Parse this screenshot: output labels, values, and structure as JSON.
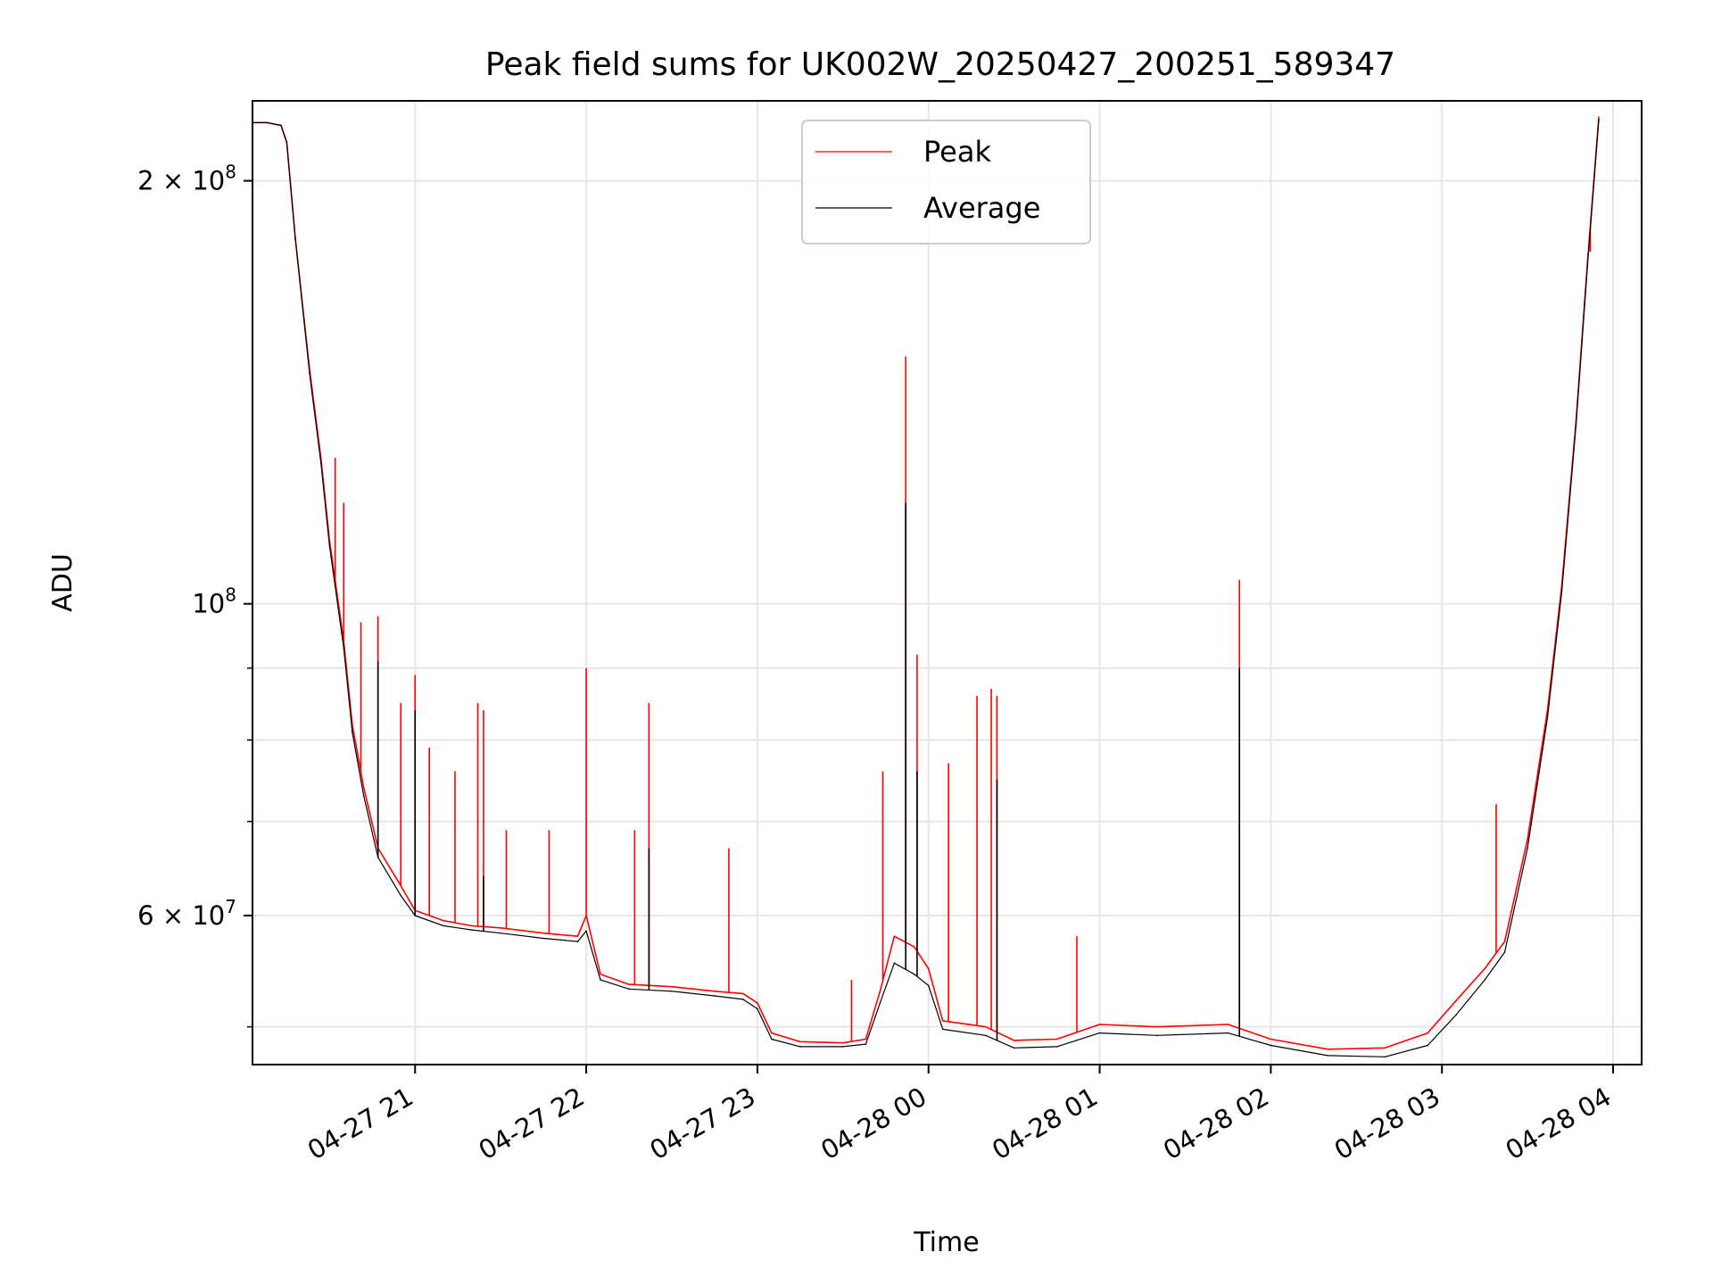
{
  "chart_data": {
    "type": "line",
    "title": "Peak field sums for UK002W_20250427_200251_589347",
    "xlabel": "Time",
    "ylabel": "ADU",
    "yscale": "log",
    "ylim": [
      47000000,
      228000000
    ],
    "xlim": [
      "2025-04-27 20:03",
      "2025-04-28 04:10"
    ],
    "grid": true,
    "legend_position": "top-center",
    "x_ticks": [
      {
        "label": "04-27 21",
        "value": "2025-04-27 21:00"
      },
      {
        "label": "04-27 22",
        "value": "2025-04-27 22:00"
      },
      {
        "label": "04-27 23",
        "value": "2025-04-27 23:00"
      },
      {
        "label": "04-28 00",
        "value": "2025-04-28 00:00"
      },
      {
        "label": "04-28 01",
        "value": "2025-04-28 01:00"
      },
      {
        "label": "04-28 02",
        "value": "2025-04-28 02:00"
      },
      {
        "label": "04-28 03",
        "value": "2025-04-28 03:00"
      },
      {
        "label": "04-28 04",
        "value": "2025-04-28 04:00"
      }
    ],
    "y_ticks_major": [
      {
        "value": 60000000,
        "base": "6",
        "exp": "7"
      },
      {
        "value": 100000000,
        "base": "",
        "exp": "8"
      },
      {
        "value": 200000000,
        "base": "2",
        "exp": "8"
      }
    ],
    "y_ticks_minor": [
      50000000,
      70000000,
      80000000,
      90000000
    ],
    "series": [
      {
        "name": "Peak",
        "color": "#ff0000",
        "x": [
          "2025-04-27 20:03",
          "2025-04-27 20:08",
          "2025-04-27 20:13",
          "2025-04-27 20:15",
          "2025-04-27 20:18",
          "2025-04-27 20:23",
          "2025-04-27 20:27",
          "2025-04-27 20:30",
          "2025-04-27 20:35",
          "2025-04-27 20:38",
          "2025-04-27 20:42",
          "2025-04-27 20:47",
          "2025-04-27 20:55",
          "2025-04-27 21:00",
          "2025-04-27 21:10",
          "2025-04-27 21:20",
          "2025-04-27 21:30",
          "2025-04-27 21:45",
          "2025-04-27 21:57",
          "2025-04-27 22:00",
          "2025-04-27 22:05",
          "2025-04-27 22:15",
          "2025-04-27 22:30",
          "2025-04-27 22:45",
          "2025-04-27 22:55",
          "2025-04-27 23:00",
          "2025-04-27 23:05",
          "2025-04-27 23:15",
          "2025-04-27 23:30",
          "2025-04-27 23:38",
          "2025-04-27 23:43",
          "2025-04-27 23:48",
          "2025-04-27 23:55",
          "2025-04-28 00:00",
          "2025-04-28 00:05",
          "2025-04-28 00:20",
          "2025-04-28 00:30",
          "2025-04-28 00:45",
          "2025-04-28 01:00",
          "2025-04-28 01:20",
          "2025-04-28 01:45",
          "2025-04-28 02:00",
          "2025-04-28 02:20",
          "2025-04-28 02:40",
          "2025-04-28 02:55",
          "2025-04-28 03:05",
          "2025-04-28 03:15",
          "2025-04-28 03:22",
          "2025-04-28 03:30",
          "2025-04-28 03:37",
          "2025-04-28 03:42",
          "2025-04-28 03:47",
          "2025-04-28 03:51",
          "2025-04-28 03:55"
        ],
        "values": [
          220000000,
          220000000,
          219000000,
          213000000,
          182000000,
          147000000,
          127000000,
          111000000,
          94000000,
          82000000,
          74000000,
          67000000,
          63000000,
          60500000,
          59500000,
          59000000,
          58800000,
          58300000,
          58000000,
          60000000,
          54500000,
          53600000,
          53400000,
          53000000,
          52800000,
          52000000,
          49500000,
          48800000,
          48700000,
          49000000,
          53000000,
          58000000,
          57000000,
          55000000,
          50500000,
          50000000,
          48900000,
          49000000,
          50200000,
          50000000,
          50200000,
          49000000,
          48200000,
          48300000,
          49500000,
          52200000,
          55000000,
          57500000,
          68000000,
          84000000,
          103000000,
          135000000,
          175000000,
          222000000
        ],
        "spikes": [
          {
            "x": "2025-04-27 20:32",
            "value": 127000000
          },
          {
            "x": "2025-04-27 20:35",
            "value": 118000000
          },
          {
            "x": "2025-04-27 20:41",
            "value": 97000000
          },
          {
            "x": "2025-04-27 20:47",
            "value": 98000000
          },
          {
            "x": "2025-04-27 20:55",
            "value": 85000000
          },
          {
            "x": "2025-04-27 21:00",
            "value": 89000000
          },
          {
            "x": "2025-04-27 21:05",
            "value": 79000000
          },
          {
            "x": "2025-04-27 21:14",
            "value": 76000000
          },
          {
            "x": "2025-04-27 21:22",
            "value": 85000000
          },
          {
            "x": "2025-04-27 21:24",
            "value": 84000000
          },
          {
            "x": "2025-04-27 21:32",
            "value": 69000000
          },
          {
            "x": "2025-04-27 21:47",
            "value": 69000000
          },
          {
            "x": "2025-04-27 22:00",
            "value": 90000000
          },
          {
            "x": "2025-04-27 22:17",
            "value": 69000000
          },
          {
            "x": "2025-04-27 22:22",
            "value": 85000000
          },
          {
            "x": "2025-04-27 22:50",
            "value": 67000000
          },
          {
            "x": "2025-04-27 23:33",
            "value": 54000000
          },
          {
            "x": "2025-04-27 23:44",
            "value": 76000000
          },
          {
            "x": "2025-04-27 23:52",
            "value": 150000000
          },
          {
            "x": "2025-04-27 23:56",
            "value": 92000000
          },
          {
            "x": "2025-04-28 00:07",
            "value": 77000000
          },
          {
            "x": "2025-04-28 00:17",
            "value": 86000000
          },
          {
            "x": "2025-04-28 00:22",
            "value": 87000000
          },
          {
            "x": "2025-04-28 00:24",
            "value": 86000000
          },
          {
            "x": "2025-04-28 00:52",
            "value": 58000000
          },
          {
            "x": "2025-04-28 01:49",
            "value": 104000000
          },
          {
            "x": "2025-04-28 03:19",
            "value": 72000000
          },
          {
            "x": "2025-04-28 03:52",
            "value": 178000000
          }
        ]
      },
      {
        "name": "Average",
        "color": "#000000",
        "x": [
          "2025-04-27 20:03",
          "2025-04-27 20:08",
          "2025-04-27 20:13",
          "2025-04-27 20:15",
          "2025-04-27 20:18",
          "2025-04-27 20:23",
          "2025-04-27 20:27",
          "2025-04-27 20:30",
          "2025-04-27 20:35",
          "2025-04-27 20:38",
          "2025-04-27 20:42",
          "2025-04-27 20:47",
          "2025-04-27 20:55",
          "2025-04-27 21:00",
          "2025-04-27 21:10",
          "2025-04-27 21:20",
          "2025-04-27 21:30",
          "2025-04-27 21:45",
          "2025-04-27 21:57",
          "2025-04-27 22:00",
          "2025-04-27 22:05",
          "2025-04-27 22:15",
          "2025-04-27 22:30",
          "2025-04-27 22:45",
          "2025-04-27 22:55",
          "2025-04-27 23:00",
          "2025-04-27 23:05",
          "2025-04-27 23:15",
          "2025-04-27 23:30",
          "2025-04-27 23:38",
          "2025-04-27 23:43",
          "2025-04-27 23:48",
          "2025-04-27 23:55",
          "2025-04-28 00:00",
          "2025-04-28 00:05",
          "2025-04-28 00:20",
          "2025-04-28 00:30",
          "2025-04-28 00:45",
          "2025-04-28 01:00",
          "2025-04-28 01:20",
          "2025-04-28 01:45",
          "2025-04-28 02:00",
          "2025-04-28 02:20",
          "2025-04-28 02:40",
          "2025-04-28 02:55",
          "2025-04-28 03:05",
          "2025-04-28 03:15",
          "2025-04-28 03:22",
          "2025-04-28 03:30",
          "2025-04-28 03:37",
          "2025-04-28 03:42",
          "2025-04-28 03:47",
          "2025-04-28 03:51",
          "2025-04-28 03:55"
        ],
        "values": [
          220000000,
          220000000,
          219000000,
          213000000,
          182000000,
          146000000,
          126000000,
          110000000,
          93000000,
          81000000,
          73000000,
          66000000,
          62000000,
          60000000,
          59000000,
          58600000,
          58300000,
          57800000,
          57500000,
          58500000,
          54000000,
          53200000,
          53000000,
          52600000,
          52300000,
          51500000,
          49000000,
          48400000,
          48400000,
          48600000,
          52000000,
          55500000,
          54500000,
          53500000,
          49800000,
          49300000,
          48300000,
          48400000,
          49500000,
          49300000,
          49500000,
          48500000,
          47700000,
          47600000,
          48500000,
          51000000,
          54000000,
          56500000,
          67000000,
          83000000,
          102000000,
          134000000,
          174000000,
          221000000
        ],
        "spikes": [
          {
            "x": "2025-04-27 20:47",
            "value": 91000000
          },
          {
            "x": "2025-04-27 21:00",
            "value": 84000000
          },
          {
            "x": "2025-04-27 21:24",
            "value": 64000000
          },
          {
            "x": "2025-04-27 22:22",
            "value": 67000000
          },
          {
            "x": "2025-04-27 23:52",
            "value": 118000000
          },
          {
            "x": "2025-04-27 23:56",
            "value": 76000000
          },
          {
            "x": "2025-04-28 00:24",
            "value": 75000000
          },
          {
            "x": "2025-04-28 01:49",
            "value": 90000000
          }
        ]
      }
    ]
  }
}
